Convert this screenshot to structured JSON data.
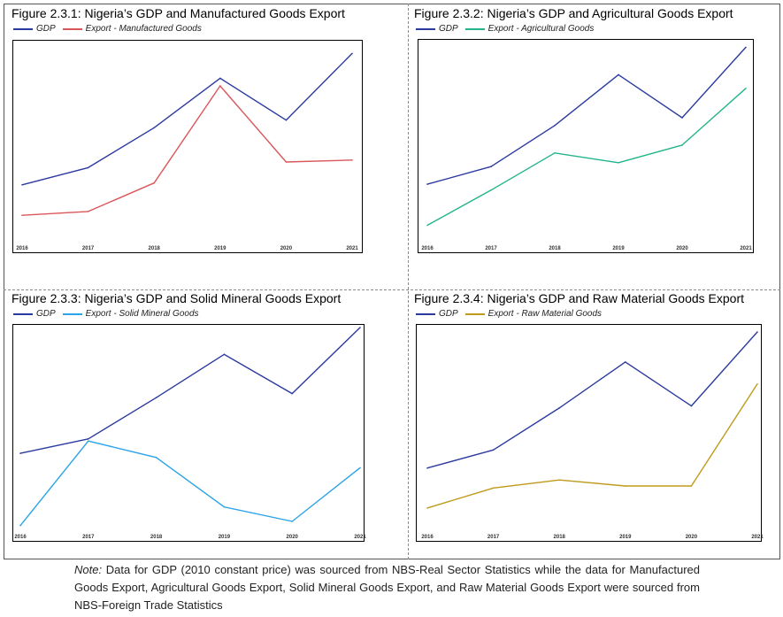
{
  "note": {
    "label": "Note:",
    "text": "Data for GDP (2010 constant price) was sourced from NBS-Real Sector Statistics while the data for Manufactured Goods Export, Agricultural Goods Export, Solid Mineral Goods Export, and Raw Material Goods Export were sourced from NBS-Foreign Trade Statistics"
  },
  "chart_data": [
    {
      "type": "line",
      "title": "Figure 2.3.1:  Nigeria’s GDP and Manufactured Goods Export",
      "categories": [
        "2016",
        "2017",
        "2018",
        "2019",
        "2020",
        "2021"
      ],
      "ylim": [
        0,
        100
      ],
      "series": [
        {
          "name": "GDP",
          "color": "#2a3a9e",
          "values": [
            28,
            37,
            58,
            84,
            62,
            97
          ]
        },
        {
          "name": "Export - Manufactured Goods",
          "color": "#d9575b",
          "values": [
            12,
            14,
            29,
            80,
            40,
            41
          ]
        }
      ]
    },
    {
      "type": "line",
      "title": "Figure 2.3.2: Nigeria’s GDP and Agricultural Goods Export",
      "categories": [
        "2016",
        "2017",
        "2018",
        "2019",
        "2020",
        "2021"
      ],
      "ylim": [
        0,
        100
      ],
      "series": [
        {
          "name": "GDP",
          "color": "#2a3a9e",
          "values": [
            28,
            37,
            58,
            84,
            62,
            98
          ]
        },
        {
          "name": "Export - Agricultural Goods",
          "color": "#23b48c",
          "values": [
            7,
            25,
            44,
            39,
            48,
            77
          ]
        }
      ]
    },
    {
      "type": "line",
      "title": "Figure 2.3.3: Nigeria’s GDP and Solid Mineral Goods Export",
      "categories": [
        "2016",
        "2017",
        "2018",
        "2019",
        "2020",
        "2021"
      ],
      "ylim": [
        0,
        100
      ],
      "series": [
        {
          "name": "GDP",
          "color": "#2a3a9e",
          "values": [
            39,
            46,
            66,
            87,
            68,
            100
          ]
        },
        {
          "name": "Export - Solid Mineral Goods",
          "color": "#2aa3e8",
          "values": [
            4,
            45,
            37,
            13,
            6,
            32
          ]
        }
      ]
    },
    {
      "type": "line",
      "title": "Figure 2.3.4: Nigeria’s GDP and Raw Material Goods Export",
      "categories": [
        "2016",
        "2017",
        "2018",
        "2019",
        "2020",
        "2021"
      ],
      "ylim": [
        0,
        100
      ],
      "series": [
        {
          "name": "GDP",
          "color": "#2a3a9e",
          "values": [
            32,
            41,
            62,
            85,
            63,
            100
          ]
        },
        {
          "name": "Export - Raw Material Goods",
          "color": "#bf9a1c",
          "values": [
            12,
            22,
            26,
            23,
            23,
            74
          ]
        }
      ]
    }
  ]
}
